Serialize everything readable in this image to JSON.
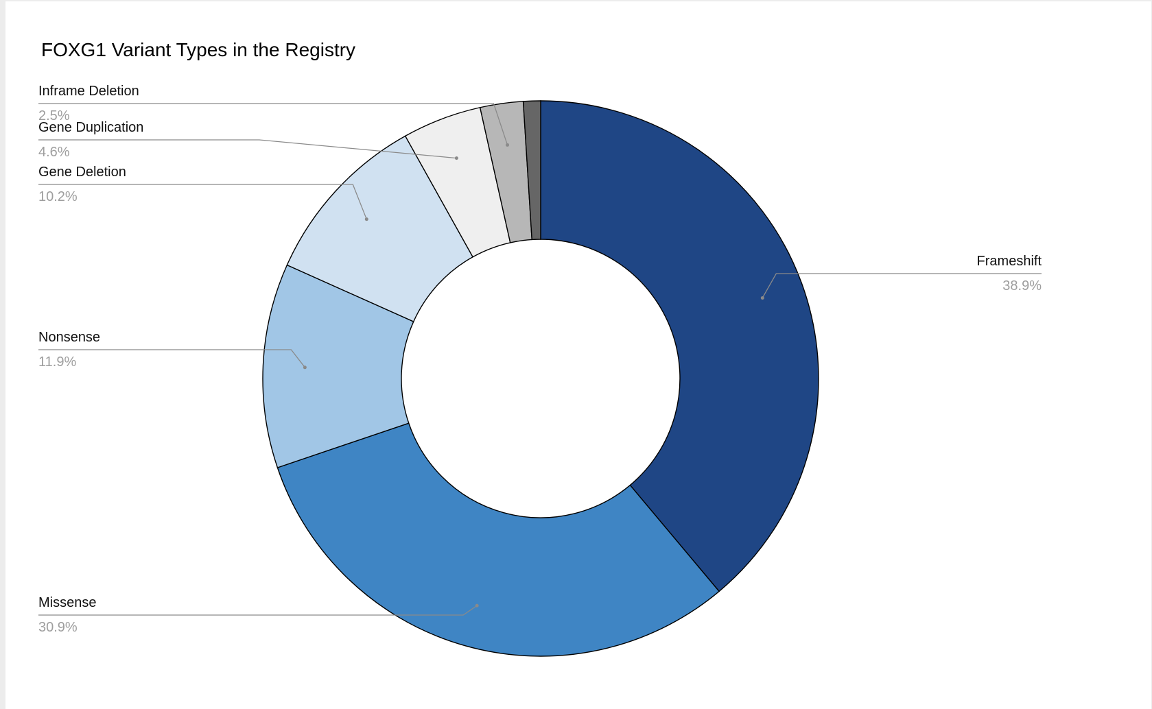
{
  "chart_data": {
    "type": "pie",
    "donut": true,
    "title": "FOXG1 Variant Types in the Registry",
    "slices": [
      {
        "label": "Frameshift",
        "value": 38.9,
        "value_label": "38.9%",
        "color": "#1f4685"
      },
      {
        "label": "Missense",
        "value": 30.9,
        "value_label": "30.9%",
        "color": "#3f85c4"
      },
      {
        "label": "Nonsense",
        "value": 11.9,
        "value_label": "11.9%",
        "color": "#a1c6e6"
      },
      {
        "label": "Gene Deletion",
        "value": 10.2,
        "value_label": "10.2%",
        "color": "#d0e1f1"
      },
      {
        "label": "Gene Duplication",
        "value": 4.6,
        "value_label": "4.6%",
        "color": "#efefef"
      },
      {
        "label": "Inframe Deletion",
        "value": 2.5,
        "value_label": "2.5%",
        "color": "#b7b7b7"
      },
      {
        "value": 1.0,
        "color": "#666666"
      }
    ],
    "legend": "none",
    "labels": "outside-with-leader-lines"
  }
}
